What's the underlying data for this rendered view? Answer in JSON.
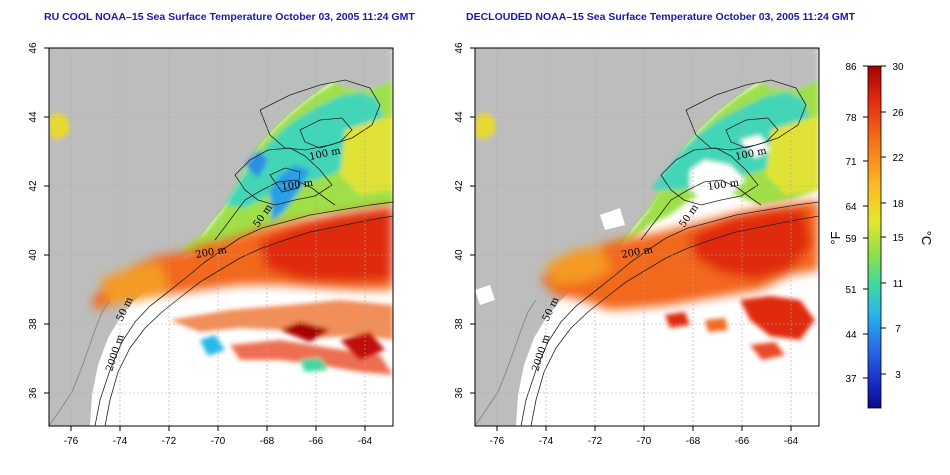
{
  "panels": [
    {
      "title": "RU COOL NOAA–15 Sea Surface Temperature October 03, 2005 11:24 GMT",
      "type": "raw"
    },
    {
      "title": "DECLOUDED NOAA–15 Sea Surface Temperature October 03, 2005 11:24 GMT",
      "type": "declouded"
    }
  ],
  "axes": {
    "lon_ticks": [
      "-76",
      "-74",
      "-72",
      "-70",
      "-68",
      "-66",
      "-64"
    ],
    "lat_ticks": [
      "46",
      "44",
      "42",
      "40",
      "38",
      "36"
    ]
  },
  "contour_labels": [
    "100 m",
    "100 m",
    "50 m",
    "200 m",
    "50 m",
    "2000 m"
  ],
  "colorbar": {
    "fahrenheit_ticks": [
      "86",
      "78",
      "71",
      "64",
      "59",
      "51",
      "44",
      "37"
    ],
    "celsius_ticks": [
      "30",
      "26",
      "22",
      "18",
      "15",
      "11",
      "7",
      "3"
    ],
    "fahrenheit_unit": "°F",
    "celsius_unit": "°C",
    "colors": [
      "#a80000",
      "#e22a10",
      "#f5711a",
      "#fbb524",
      "#e8e62c",
      "#8fe04a",
      "#3fd9a0",
      "#28b8e6",
      "#2a6fe8",
      "#1830c8",
      "#0a0a90"
    ]
  },
  "colors": {
    "land": "#bdbdbd",
    "title": "#1a1aa6"
  }
}
